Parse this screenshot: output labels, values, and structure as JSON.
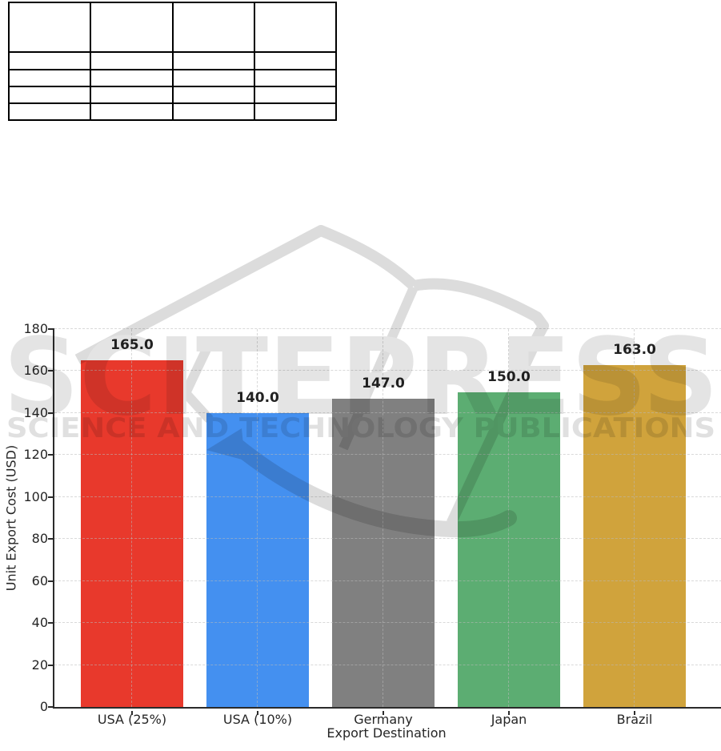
{
  "page": {
    "background": "#ffffff"
  },
  "table": {
    "note_rows": 5,
    "note_cols": 4,
    "cells": [
      [
        "",
        "",
        "",
        ""
      ],
      [
        "",
        "",
        "",
        ""
      ],
      [
        "",
        "",
        "",
        ""
      ],
      [
        "",
        "",
        "",
        ""
      ],
      [
        "",
        "",
        "",
        ""
      ]
    ]
  },
  "watermark": {
    "title": "SCITEPRESS",
    "tagline": "SCIENCE AND TECHNOLOGY PUBLICATIONS",
    "title_color": "#e4e4e4",
    "tagline_color": "#e0e0e0",
    "stroke_color": "#dcdcdc"
  },
  "chart_data": {
    "type": "bar",
    "title": "",
    "categories": [
      "USA (25%)",
      "USA (10%)",
      "Germany",
      "Japan",
      "Brazil"
    ],
    "values": [
      165.0,
      140.0,
      147.0,
      150.0,
      163.0
    ],
    "bar_labels": [
      "165.0",
      "140.0",
      "147.0",
      "150.0",
      "163.0"
    ],
    "bar_colors": [
      "#e8392c",
      "#4490f0",
      "#808080",
      "#5cad72",
      "#d0a33c"
    ],
    "xlabel": "Export Destination",
    "ylabel": "Unit Export Cost (USD)",
    "ylim": [
      0,
      180
    ],
    "yticks": [
      0,
      20,
      40,
      60,
      80,
      100,
      120,
      140,
      160,
      180
    ],
    "grid": "dashed, horizontal and vertical",
    "legend": null,
    "axis_color": "#2b2b2b",
    "label_color": "#262626"
  }
}
